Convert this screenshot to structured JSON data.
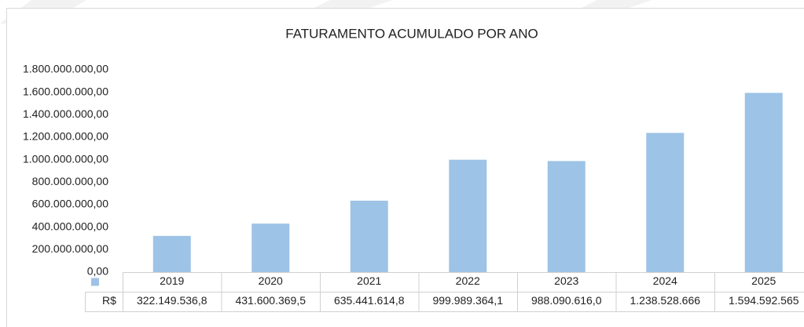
{
  "chart_data": {
    "type": "bar",
    "title": "FATURAMENTO ACUMULADO POR ANO",
    "categories": [
      "2019",
      "2020",
      "2021",
      "2022",
      "2023",
      "2024",
      "2025"
    ],
    "series": [
      {
        "name": "R$",
        "color": "#9dc3e6",
        "values": [
          322149536.8,
          431600369.5,
          635441614.8,
          999989364.1,
          988090616.0,
          1238528666,
          1594592565
        ],
        "value_labels": [
          "322.149.536,8",
          "431.600.369,5",
          "635.441.614,8",
          "999.989.364,1",
          "988.090.616,0",
          "1.238.528.666",
          "1.594.592.565"
        ]
      }
    ],
    "ylim": [
      0,
      1800000000
    ],
    "yticks": [
      {
        "value": 0,
        "label": "0,00"
      },
      {
        "value": 200000000,
        "label": "200.000.000,00"
      },
      {
        "value": 400000000,
        "label": "400.000.000,00"
      },
      {
        "value": 600000000,
        "label": "600.000.000,00"
      },
      {
        "value": 800000000,
        "label": "800.000.000,00"
      },
      {
        "value": 1000000000,
        "label": "1.000.000.000,00"
      },
      {
        "value": 1200000000,
        "label": "1.200.000.000,00"
      },
      {
        "value": 1400000000,
        "label": "1.400.000.000,00"
      },
      {
        "value": 1600000000,
        "label": "1.600.000.000,00"
      },
      {
        "value": 1800000000,
        "label": "1.800.000.000,00"
      }
    ],
    "grid": false
  }
}
